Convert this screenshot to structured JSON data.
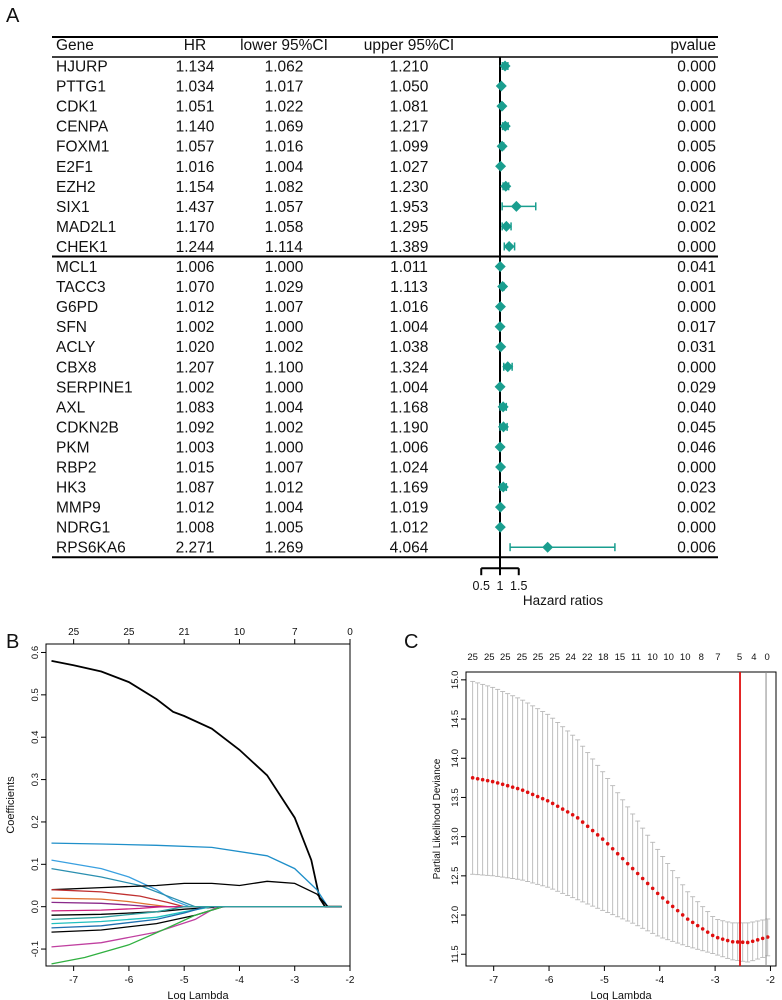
{
  "panel_labels": {
    "a": "A",
    "b": "B",
    "c": "C"
  },
  "chart_data": [
    {
      "type": "forest",
      "columns": [
        "Gene",
        "HR",
        "lower 95%CI",
        "upper 95%CI",
        "pvalue"
      ],
      "xlabel": "Hazard ratios",
      "ticks": [
        "0.5",
        "1",
        "1.5"
      ],
      "tick_values": [
        0.5,
        1,
        1.5
      ],
      "reference_line": 1,
      "marker_color": "#1a9e8f",
      "group_break_after_row": 10,
      "rows": [
        {
          "gene": "HJURP",
          "hr": "1.134",
          "lower": "1.062",
          "upper": "1.210",
          "p": "0.000"
        },
        {
          "gene": "PTTG1",
          "hr": "1.034",
          "lower": "1.017",
          "upper": "1.050",
          "p": "0.000"
        },
        {
          "gene": "CDK1",
          "hr": "1.051",
          "lower": "1.022",
          "upper": "1.081",
          "p": "0.001"
        },
        {
          "gene": "CENPA",
          "hr": "1.140",
          "lower": "1.069",
          "upper": "1.217",
          "p": "0.000"
        },
        {
          "gene": "FOXM1",
          "hr": "1.057",
          "lower": "1.016",
          "upper": "1.099",
          "p": "0.005"
        },
        {
          "gene": "E2F1",
          "hr": "1.016",
          "lower": "1.004",
          "upper": "1.027",
          "p": "0.006"
        },
        {
          "gene": "EZH2",
          "hr": "1.154",
          "lower": "1.082",
          "upper": "1.230",
          "p": "0.000"
        },
        {
          "gene": "SIX1",
          "hr": "1.437",
          "lower": "1.057",
          "upper": "1.953",
          "p": "0.021"
        },
        {
          "gene": "MAD2L1",
          "hr": "1.170",
          "lower": "1.058",
          "upper": "1.295",
          "p": "0.002"
        },
        {
          "gene": "CHEK1",
          "hr": "1.244",
          "lower": "1.114",
          "upper": "1.389",
          "p": "0.000"
        },
        {
          "gene": "MCL1",
          "hr": "1.006",
          "lower": "1.000",
          "upper": "1.011",
          "p": "0.041"
        },
        {
          "gene": "TACC3",
          "hr": "1.070",
          "lower": "1.029",
          "upper": "1.113",
          "p": "0.001"
        },
        {
          "gene": "G6PD",
          "hr": "1.012",
          "lower": "1.007",
          "upper": "1.016",
          "p": "0.000"
        },
        {
          "gene": "SFN",
          "hr": "1.002",
          "lower": "1.000",
          "upper": "1.004",
          "p": "0.017"
        },
        {
          "gene": "ACLY",
          "hr": "1.020",
          "lower": "1.002",
          "upper": "1.038",
          "p": "0.031"
        },
        {
          "gene": "CBX8",
          "hr": "1.207",
          "lower": "1.100",
          "upper": "1.324",
          "p": "0.000"
        },
        {
          "gene": "SERPINE1",
          "hr": "1.002",
          "lower": "1.000",
          "upper": "1.004",
          "p": "0.029"
        },
        {
          "gene": "AXL",
          "hr": "1.083",
          "lower": "1.004",
          "upper": "1.168",
          "p": "0.040"
        },
        {
          "gene": "CDKN2B",
          "hr": "1.092",
          "lower": "1.002",
          "upper": "1.190",
          "p": "0.045"
        },
        {
          "gene": "PKM",
          "hr": "1.003",
          "lower": "1.000",
          "upper": "1.006",
          "p": "0.046"
        },
        {
          "gene": "RBP2",
          "hr": "1.015",
          "lower": "1.007",
          "upper": "1.024",
          "p": "0.000"
        },
        {
          "gene": "HK3",
          "hr": "1.087",
          "lower": "1.012",
          "upper": "1.169",
          "p": "0.023"
        },
        {
          "gene": "MMP9",
          "hr": "1.012",
          "lower": "1.004",
          "upper": "1.019",
          "p": "0.002"
        },
        {
          "gene": "NDRG1",
          "hr": "1.008",
          "lower": "1.005",
          "upper": "1.012",
          "p": "0.000"
        },
        {
          "gene": "RPS6KA6",
          "hr": "2.271",
          "lower": "1.269",
          "upper": "4.064",
          "p": "0.006"
        }
      ]
    },
    {
      "type": "line",
      "title": "",
      "xlabel": "Log Lambda",
      "ylabel": "Coefficients",
      "xlim": [
        -7.5,
        -2.0
      ],
      "ylim": [
        -0.14,
        0.62
      ],
      "x_ticks": [
        "-7",
        "-6",
        "-5",
        "-4",
        "-3",
        "-2"
      ],
      "x_tick_values": [
        -7,
        -6,
        -5,
        -4,
        -3,
        -2
      ],
      "y_ticks": [
        "-0.1",
        "0.0",
        "0.1",
        "0.2",
        "0.3",
        "0.4",
        "0.5",
        "0.6"
      ],
      "y_tick_values": [
        -0.1,
        0,
        0.1,
        0.2,
        0.3,
        0.4,
        0.5,
        0.6
      ],
      "top_axis_labels": [
        "25",
        "25",
        "21",
        "10",
        "7",
        "0"
      ],
      "top_axis_values": [
        -7,
        -6,
        -5,
        -4,
        -3,
        -2
      ],
      "series": [
        {
          "name": "path1",
          "color": "#000000",
          "x": [
            -7.4,
            -7,
            -6.5,
            -6,
            -5.5,
            -5.2,
            -5,
            -4.5,
            -4,
            -3.5,
            -3,
            -2.7,
            -2.55,
            -2.45
          ],
          "y": [
            0.58,
            0.57,
            0.555,
            0.53,
            0.49,
            0.46,
            0.45,
            0.42,
            0.37,
            0.31,
            0.21,
            0.11,
            0.02,
            0
          ]
        },
        {
          "name": "path2",
          "color": "#1f8fc9",
          "x": [
            -7.4,
            -6.5,
            -5.5,
            -4.5,
            -3.5,
            -3,
            -2.6,
            -2.4
          ],
          "y": [
            0.15,
            0.148,
            0.145,
            0.14,
            0.12,
            0.09,
            0.04,
            0
          ]
        },
        {
          "name": "path3",
          "color": "#3aa0e0",
          "x": [
            -7.4,
            -6.5,
            -6,
            -5.5,
            -5.2,
            -4.9
          ],
          "y": [
            0.11,
            0.09,
            0.07,
            0.04,
            0.015,
            0
          ]
        },
        {
          "name": "path4",
          "color": "#2a8fb0",
          "x": [
            -7.4,
            -6.5,
            -5.8,
            -5.2,
            -4.9,
            -4.8
          ],
          "y": [
            0.09,
            0.07,
            0.05,
            0.02,
            0.005,
            0
          ]
        },
        {
          "name": "path5",
          "color": "#000000",
          "x": [
            -7.4,
            -6.5,
            -5.5,
            -5,
            -4.5,
            -4,
            -3.5,
            -3,
            -2.6,
            -2.4
          ],
          "y": [
            0.04,
            0.045,
            0.05,
            0.055,
            0.055,
            0.05,
            0.06,
            0.055,
            0.03,
            0
          ]
        },
        {
          "name": "path6",
          "color": "#c03030",
          "x": [
            -7.4,
            -6.5,
            -5.8,
            -5.3,
            -5
          ],
          "y": [
            0.04,
            0.035,
            0.025,
            0.01,
            0
          ]
        },
        {
          "name": "path7",
          "color": "#e07030",
          "x": [
            -7.4,
            -6.5,
            -6,
            -5.6,
            -5.3
          ],
          "y": [
            0.02,
            0.018,
            0.012,
            0.005,
            0
          ]
        },
        {
          "name": "path8",
          "color": "#8a2a8a",
          "x": [
            -7.4,
            -6.5,
            -6,
            -5.6
          ],
          "y": [
            0.01,
            0.008,
            0.004,
            0
          ]
        },
        {
          "name": "path9",
          "color": "#000000",
          "x": [
            -7.4,
            -6.5,
            -5.5,
            -5,
            -4.5,
            -4.2
          ],
          "y": [
            -0.02,
            -0.018,
            -0.012,
            -0.006,
            -0.002,
            0
          ]
        },
        {
          "name": "path10",
          "color": "#20c0c0",
          "x": [
            -7.4,
            -6.5,
            -5.5,
            -5,
            -4.5
          ],
          "y": [
            -0.04,
            -0.035,
            -0.025,
            -0.012,
            0
          ]
        },
        {
          "name": "path11",
          "color": "#1f6fb0",
          "x": [
            -7.4,
            -6.5,
            -5.5,
            -5,
            -4.6
          ],
          "y": [
            -0.05,
            -0.045,
            -0.03,
            -0.015,
            0
          ]
        },
        {
          "name": "path12",
          "color": "#000000",
          "x": [
            -7.4,
            -6.5,
            -5.5,
            -4.8,
            -4.3
          ],
          "y": [
            -0.06,
            -0.055,
            -0.04,
            -0.02,
            0
          ]
        },
        {
          "name": "path13",
          "color": "#c040a0",
          "x": [
            -7.4,
            -6.5,
            -5.5,
            -4.8,
            -4.4
          ],
          "y": [
            -0.095,
            -0.085,
            -0.06,
            -0.03,
            0
          ]
        },
        {
          "name": "path14",
          "color": "#30b040",
          "x": [
            -7.4,
            -6.8,
            -6,
            -5.3,
            -4.8,
            -4.3
          ],
          "y": [
            -0.135,
            -0.12,
            -0.09,
            -0.05,
            -0.02,
            0
          ]
        },
        {
          "name": "path15",
          "color": "#d02080",
          "x": [
            -7.4,
            -6.5,
            -5.8,
            -5.4
          ],
          "y": [
            -0.01,
            -0.008,
            -0.004,
            0
          ]
        },
        {
          "name": "path16",
          "color": "#30a0a0",
          "x": [
            -7.4,
            -6.5,
            -5.5,
            -5
          ],
          "y": [
            -0.03,
            -0.025,
            -0.012,
            0
          ]
        }
      ]
    },
    {
      "type": "errorbar",
      "title": "",
      "xlabel": "Log Lambda",
      "ylabel": "Partial Likelihood Deviance",
      "xlim": [
        -7.5,
        -1.9
      ],
      "ylim": [
        11.35,
        15.1
      ],
      "x_ticks": [
        "-7",
        "-6",
        "-5",
        "-4",
        "-3",
        "-2"
      ],
      "x_tick_values": [
        -7,
        -6,
        -5,
        -4,
        -3,
        -2
      ],
      "y_ticks": [
        "11.5",
        "12.0",
        "12.5",
        "13.0",
        "13.5",
        "14.0",
        "14.5",
        "15.0"
      ],
      "y_tick_values": [
        11.5,
        12,
        12.5,
        13,
        13.5,
        14,
        14.5,
        15
      ],
      "top_axis_labels": [
        "25",
        "25",
        "25",
        "25",
        "25",
        "25",
        "24",
        "22",
        "18",
        "15",
        "11",
        "10",
        "10",
        "10",
        "8",
        "7",
        "5",
        "4",
        "0"
      ],
      "top_axis_values": [
        -7.38,
        -7.08,
        -6.79,
        -6.49,
        -6.2,
        -5.9,
        -5.61,
        -5.31,
        -5.02,
        -4.72,
        -4.43,
        -4.13,
        -3.84,
        -3.54,
        -3.25,
        -2.95,
        -2.56,
        -2.3,
        -2.06
      ],
      "vlines": [
        {
          "x": -2.55,
          "color": "#e01010"
        },
        {
          "x": -2.08,
          "color": "#888888"
        }
      ],
      "point_color": "#e01010",
      "n_points": 60,
      "x_start": -7.38,
      "x_end": -2.05,
      "mean_curve_x": [
        -7.38,
        -7,
        -6.5,
        -6,
        -5.5,
        -5,
        -4.5,
        -4,
        -3.5,
        -3,
        -2.7,
        -2.4,
        -2.05
      ],
      "mean_curve_y": [
        13.75,
        13.7,
        13.6,
        13.45,
        13.25,
        12.95,
        12.6,
        12.25,
        11.95,
        11.72,
        11.66,
        11.65,
        11.72
      ],
      "upper_curve_x": [
        -7.38,
        -7,
        -6.5,
        -6,
        -5.5,
        -5,
        -4.5,
        -4,
        -3.5,
        -3,
        -2.7,
        -2.4,
        -2.05
      ],
      "upper_curve_y": [
        14.98,
        14.9,
        14.75,
        14.55,
        14.25,
        13.8,
        13.3,
        12.8,
        12.3,
        11.95,
        11.9,
        11.9,
        11.95
      ],
      "lower_curve_x": [
        -7.38,
        -7,
        -6.5,
        -6,
        -5.5,
        -5,
        -4.5,
        -4,
        -3.5,
        -3,
        -2.7,
        -2.4,
        -2.05
      ],
      "lower_curve_y": [
        12.52,
        12.5,
        12.45,
        12.35,
        12.2,
        12.05,
        11.9,
        11.72,
        11.6,
        11.5,
        11.43,
        11.4,
        11.48
      ]
    }
  ]
}
